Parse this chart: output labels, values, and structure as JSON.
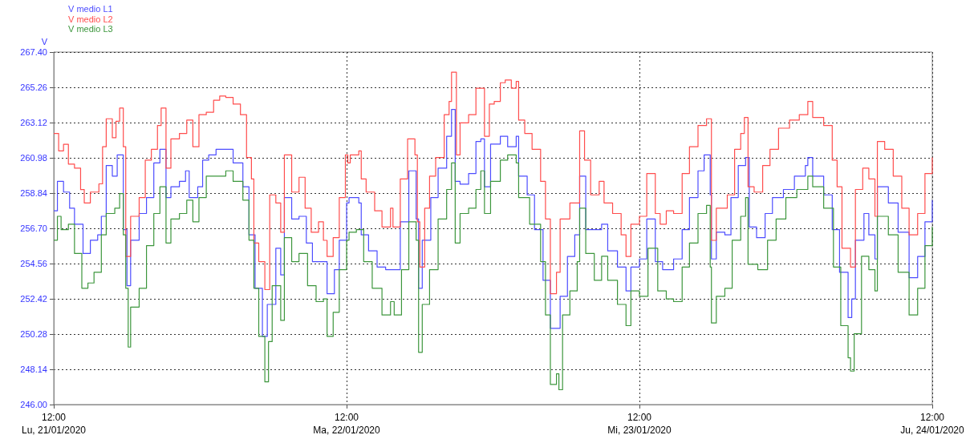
{
  "chart_data": {
    "type": "step",
    "ylabel": "V",
    "legend": "top left",
    "grid": true,
    "marker": "none",
    "line_style": "solid",
    "xlim": [
      "2020-01-21T12:00",
      "2020-01-24T12:00"
    ],
    "xticks": [
      {
        "value": "2020-01-21T12:00",
        "label": "12:00\nLu, 21/01/2020"
      },
      {
        "value": "2020-01-22T12:00",
        "label": "12:00\nMa, 22/01/2020"
      },
      {
        "value": "2020-01-23T12:00",
        "label": "12:00\nMi, 23/01/2020"
      },
      {
        "value": "2020-01-24T12:00",
        "label": "12:00\nJu, 24/01/2020"
      }
    ],
    "ylim": [
      246,
      267.4
    ],
    "yticks": [
      {
        "value": 246,
        "label": "246.00"
      },
      {
        "value": 248.14,
        "label": "248.14"
      },
      {
        "value": 250.28,
        "label": "250.28"
      },
      {
        "value": 252.42,
        "label": "252.42"
      },
      {
        "value": 254.56,
        "label": "254.56"
      },
      {
        "value": 256.7,
        "label": "256.70"
      },
      {
        "value": 258.84,
        "label": "258.84"
      },
      {
        "value": 260.98,
        "label": "260.98"
      },
      {
        "value": 263.12,
        "label": "263.12"
      },
      {
        "value": 265.26,
        "label": "265.26"
      },
      {
        "value": 267.4,
        "label": "267.40"
      }
    ],
    "series": [
      {
        "name": "V medio L1",
        "color": "#4d4dff",
        "x": [
          "2020-01-21T12:00",
          "2020-01-21T12:18",
          "2020-01-21T12:48",
          "2020-01-21T13:18",
          "2020-01-21T13:42",
          "2020-01-21T14:24",
          "2020-01-21T15:00",
          "2020-01-21T15:36",
          "2020-01-21T15:54",
          "2020-01-21T16:18",
          "2020-01-21T16:48",
          "2020-01-21T17:12",
          "2020-01-21T17:36",
          "2020-01-21T17:42",
          "2020-01-21T18:00",
          "2020-01-21T18:18",
          "2020-01-21T19:00",
          "2020-01-21T19:36",
          "2020-01-21T20:12",
          "2020-01-21T20:42",
          "2020-01-21T21:12",
          "2020-01-21T21:36",
          "2020-01-21T22:18",
          "2020-01-21T22:48",
          "2020-01-21T23:06",
          "2020-01-21T23:48",
          "2020-01-22T00:12",
          "2020-01-22T00:42",
          "2020-01-22T01:18",
          "2020-01-22T02:06",
          "2020-01-22T02:42",
          "2020-01-22T03:30",
          "2020-01-22T04:00",
          "2020-01-22T04:30",
          "2020-01-22T05:06",
          "2020-01-22T05:30",
          "2020-01-22T06:12",
          "2020-01-22T06:36",
          "2020-01-22T06:54",
          "2020-01-22T07:30",
          "2020-01-22T08:06",
          "2020-01-22T08:42",
          "2020-01-22T09:12",
          "2020-01-22T09:54",
          "2020-01-22T10:24",
          "2020-01-22T11:00",
          "2020-01-22T11:24",
          "2020-01-22T12:00",
          "2020-01-22T12:12",
          "2020-01-22T13:00",
          "2020-01-22T13:12",
          "2020-01-22T13:48",
          "2020-01-22T14:30",
          "2020-01-22T15:12",
          "2020-01-22T15:48",
          "2020-01-22T16:24",
          "2020-01-22T17:06",
          "2020-01-22T17:42",
          "2020-01-22T17:54",
          "2020-01-22T18:12",
          "2020-01-22T18:54",
          "2020-01-22T19:30",
          "2020-01-22T20:12",
          "2020-01-22T20:36",
          "2020-01-22T20:54",
          "2020-01-22T21:18",
          "2020-01-22T22:00",
          "2020-01-22T22:36",
          "2020-01-22T23:00",
          "2020-01-22T23:18",
          "2020-01-22T23:48",
          "2020-01-23T00:36",
          "2020-01-23T01:12",
          "2020-01-23T01:54",
          "2020-01-23T02:06",
          "2020-01-23T02:48",
          "2020-01-23T03:24",
          "2020-01-23T04:06",
          "2020-01-23T04:42",
          "2020-01-23T05:12",
          "2020-01-23T05:30",
          "2020-01-23T06:06",
          "2020-01-23T06:42",
          "2020-01-23T07:06",
          "2020-01-23T07:36",
          "2020-01-23T08:18",
          "2020-01-23T08:54",
          "2020-01-23T09:24",
          "2020-01-23T10:12",
          "2020-01-23T10:54",
          "2020-01-23T11:18",
          "2020-01-23T12:00",
          "2020-01-23T12:36",
          "2020-01-23T13:18",
          "2020-01-23T13:54",
          "2020-01-23T14:48",
          "2020-01-23T15:30",
          "2020-01-23T16:06",
          "2020-01-23T16:48",
          "2020-01-23T17:18",
          "2020-01-23T17:48",
          "2020-01-23T17:54",
          "2020-01-23T18:18",
          "2020-01-23T19:00",
          "2020-01-23T19:30",
          "2020-01-23T20:06",
          "2020-01-23T20:42",
          "2020-01-23T21:00",
          "2020-01-23T21:36",
          "2020-01-23T22:18",
          "2020-01-23T22:54",
          "2020-01-23T23:48",
          "2020-01-24T00:42",
          "2020-01-24T01:36",
          "2020-01-24T01:48",
          "2020-01-24T02:12",
          "2020-01-24T03:06",
          "2020-01-24T03:48",
          "2020-01-24T04:24",
          "2020-01-24T05:06",
          "2020-01-24T05:24",
          "2020-01-24T05:42",
          "2020-01-24T06:24",
          "2020-01-24T06:48",
          "2020-01-24T07:18",
          "2020-01-24T07:30",
          "2020-01-24T08:24",
          "2020-01-24T09:12",
          "2020-01-24T10:06",
          "2020-01-24T10:48",
          "2020-01-24T11:24",
          "2020-01-24T12:00"
        ],
        "values": [
          257.76,
          259.55,
          258.9,
          257.92,
          256.95,
          255.17,
          255.98,
          256.3,
          257.43,
          260.51,
          259.87,
          261.16,
          261.16,
          256.62,
          253.22,
          255.98,
          257.6,
          258.57,
          260.67,
          261.5,
          258.57,
          259.22,
          259.55,
          260.19,
          258.57,
          259.22,
          260.84,
          261.16,
          261.5,
          261.5,
          260.67,
          259.22,
          256.3,
          253.06,
          250.14,
          252.08,
          255.49,
          253.87,
          258.57,
          257.27,
          257.43,
          255.81,
          254.68,
          254.68,
          252.73,
          254.19,
          255.98,
          258.24,
          258.57,
          258.24,
          256.3,
          255.33,
          254.35,
          254.19,
          254.19,
          257.1,
          260.19,
          257.27,
          253.06,
          255.98,
          258.57,
          260.35,
          262.29,
          263.92,
          259.55,
          259.38,
          260.03,
          261.97,
          262.13,
          259.22,
          261.81,
          262.29,
          261.65,
          262.29,
          259.87,
          258.73,
          256.62,
          253.54,
          250.63,
          250.63,
          252.57,
          254.99,
          256.3,
          259.87,
          256.62,
          256.62,
          256.95,
          255.33,
          254.35,
          252.9,
          254.35,
          254.84,
          257.27,
          254.68,
          254.19,
          254.84,
          256.62,
          258.57,
          260.19,
          261.16,
          258.73,
          254.84,
          256.46,
          256.3,
          258.57,
          260.51,
          261.0,
          256.78,
          256.13,
          257.6,
          258.57,
          259.06,
          259.87,
          260.51,
          261.0,
          259.87,
          258.73,
          256.62,
          254.03,
          251.28,
          252.41,
          255.98,
          257.6,
          256.3,
          254.84,
          259.22,
          258.24,
          256.46,
          253.7,
          254.99,
          257.1,
          258.41
        ]
      },
      {
        "name": "V medio L2",
        "color": "#ff4d4d",
        "x": [
          "2020-01-21T12:00",
          "2020-01-21T12:24",
          "2020-01-21T12:48",
          "2020-01-21T13:12",
          "2020-01-21T13:42",
          "2020-01-21T14:12",
          "2020-01-21T14:30",
          "2020-01-21T15:00",
          "2020-01-21T15:42",
          "2020-01-21T16:00",
          "2020-01-21T16:18",
          "2020-01-21T16:48",
          "2020-01-21T17:06",
          "2020-01-21T17:24",
          "2020-01-21T17:42",
          "2020-01-21T17:54",
          "2020-01-21T18:18",
          "2020-01-21T19:00",
          "2020-01-21T19:30",
          "2020-01-21T20:00",
          "2020-01-21T20:30",
          "2020-01-21T20:48",
          "2020-01-21T21:12",
          "2020-01-21T21:36",
          "2020-01-21T22:18",
          "2020-01-21T22:54",
          "2020-01-21T23:24",
          "2020-01-21T23:54",
          "2020-01-22T00:30",
          "2020-01-22T01:06",
          "2020-01-22T01:36",
          "2020-01-22T02:06",
          "2020-01-22T02:42",
          "2020-01-22T03:18",
          "2020-01-22T03:48",
          "2020-01-22T04:12",
          "2020-01-22T04:24",
          "2020-01-22T04:48",
          "2020-01-22T05:18",
          "2020-01-22T05:42",
          "2020-01-22T06:12",
          "2020-01-22T06:36",
          "2020-01-22T06:54",
          "2020-01-22T07:30",
          "2020-01-22T08:06",
          "2020-01-22T08:36",
          "2020-01-22T09:06",
          "2020-01-22T09:42",
          "2020-01-22T10:06",
          "2020-01-22T10:24",
          "2020-01-22T10:54",
          "2020-01-22T11:24",
          "2020-01-22T11:54",
          "2020-01-22T12:06",
          "2020-01-22T12:18",
          "2020-01-22T13:00",
          "2020-01-22T13:12",
          "2020-01-22T13:36",
          "2020-01-22T14:18",
          "2020-01-22T14:54",
          "2020-01-22T15:36",
          "2020-01-22T15:48",
          "2020-01-22T16:24",
          "2020-01-22T17:00",
          "2020-01-22T17:36",
          "2020-01-22T17:48",
          "2020-01-22T18:00",
          "2020-01-22T18:24",
          "2020-01-22T18:48",
          "2020-01-22T19:18",
          "2020-01-22T20:00",
          "2020-01-22T20:24",
          "2020-01-22T20:36",
          "2020-01-22T21:00",
          "2020-01-22T21:18",
          "2020-01-22T22:00",
          "2020-01-22T22:36",
          "2020-01-22T23:00",
          "2020-01-22T23:18",
          "2020-01-22T23:42",
          "2020-01-23T00:06",
          "2020-01-23T00:36",
          "2020-01-23T01:00",
          "2020-01-23T01:30",
          "2020-01-23T01:54",
          "2020-01-23T02:06",
          "2020-01-23T02:36",
          "2020-01-23T03:12",
          "2020-01-23T03:54",
          "2020-01-23T04:18",
          "2020-01-23T04:42",
          "2020-01-23T05:12",
          "2020-01-23T05:30",
          "2020-01-23T06:18",
          "2020-01-23T07:06",
          "2020-01-23T07:30",
          "2020-01-23T08:00",
          "2020-01-23T08:42",
          "2020-01-23T09:06",
          "2020-01-23T09:48",
          "2020-01-23T10:30",
          "2020-01-23T10:54",
          "2020-01-23T11:18",
          "2020-01-23T12:00",
          "2020-01-23T12:36",
          "2020-01-23T13:18",
          "2020-01-23T13:42",
          "2020-01-23T14:12",
          "2020-01-23T14:48",
          "2020-01-23T15:30",
          "2020-01-23T16:06",
          "2020-01-23T16:48",
          "2020-01-23T17:30",
          "2020-01-23T17:54",
          "2020-01-23T18:18",
          "2020-01-23T19:12",
          "2020-01-23T19:48",
          "2020-01-23T20:18",
          "2020-01-23T20:36",
          "2020-01-23T20:54",
          "2020-01-23T21:24",
          "2020-01-23T22:06",
          "2020-01-23T22:42",
          "2020-01-23T23:24",
          "2020-01-24T00:18",
          "2020-01-24T01:06",
          "2020-01-24T01:48",
          "2020-01-24T02:12",
          "2020-01-24T03:06",
          "2020-01-24T03:48",
          "2020-01-24T04:12",
          "2020-01-24T04:36",
          "2020-01-24T05:18",
          "2020-01-24T05:42",
          "2020-01-24T06:18",
          "2020-01-24T06:48",
          "2020-01-24T07:18",
          "2020-01-24T07:30",
          "2020-01-24T08:06",
          "2020-01-24T08:48",
          "2020-01-24T09:30",
          "2020-01-24T10:06",
          "2020-01-24T10:48",
          "2020-01-24T11:24",
          "2020-01-24T12:00"
        ],
        "values": [
          262.46,
          261.4,
          261.8,
          260.6,
          260.35,
          259.05,
          258.24,
          258.9,
          259.4,
          261.65,
          263.35,
          262.2,
          263.2,
          264.0,
          261.65,
          254.99,
          257.43,
          258.57,
          260.84,
          261.5,
          262.94,
          264.0,
          260.35,
          262.13,
          262.46,
          263.27,
          261.65,
          263.6,
          263.75,
          264.48,
          264.73,
          264.65,
          264.24,
          263.6,
          261.0,
          259.7,
          255.81,
          254.68,
          252.98,
          258.73,
          258.24,
          256.46,
          261.16,
          258.9,
          259.8,
          257.92,
          256.46,
          257.1,
          255.97,
          254.99,
          256.13,
          258.57,
          261.16,
          260.67,
          261.16,
          261.4,
          259.7,
          258.9,
          257.76,
          256.78,
          257.92,
          256.78,
          259.7,
          262.13,
          261.16,
          257.1,
          254.35,
          257.92,
          259.87,
          261.0,
          263.6,
          264.4,
          266.18,
          261.16,
          263.1,
          263.6,
          265.21,
          265.21,
          262.29,
          264.24,
          264.4,
          265.54,
          265.7,
          265.21,
          265.62,
          263.27,
          262.46,
          261.5,
          259.55,
          257.27,
          252.73,
          254.03,
          257.27,
          258.24,
          262.62,
          260.84,
          258.73,
          259.55,
          258.24,
          257.6,
          256.3,
          254.99,
          256.95,
          257.43,
          260.03,
          257.6,
          256.95,
          257.76,
          257.6,
          260.03,
          261.65,
          262.94,
          263.35,
          255.97,
          257.92,
          258.73,
          261.5,
          262.46,
          263.43,
          259.22,
          258.9,
          260.51,
          261.5,
          262.78,
          263.27,
          263.6,
          264.4,
          263.43,
          262.94,
          260.84,
          259.22,
          255.49,
          254.35,
          259.06,
          260.35,
          259.7,
          257.43,
          261.97,
          261.5,
          259.87,
          257.92,
          256.3,
          257.6,
          260.03,
          261.0
        ]
      },
      {
        "name": "V medio L3",
        "color": "#3c963c",
        "x": [
          "2020-01-21T12:00",
          "2020-01-21T12:18",
          "2020-01-21T12:36",
          "2020-01-21T13:12",
          "2020-01-21T13:42",
          "2020-01-21T14:18",
          "2020-01-21T14:48",
          "2020-01-21T15:18",
          "2020-01-21T15:54",
          "2020-01-21T16:18",
          "2020-01-21T17:00",
          "2020-01-21T17:24",
          "2020-01-21T17:42",
          "2020-01-21T17:54",
          "2020-01-21T18:06",
          "2020-01-21T18:18",
          "2020-01-21T19:00",
          "2020-01-21T19:36",
          "2020-01-21T20:12",
          "2020-01-21T20:42",
          "2020-01-21T21:12",
          "2020-01-21T21:36",
          "2020-01-21T22:18",
          "2020-01-21T22:54",
          "2020-01-21T23:24",
          "2020-01-21T23:54",
          "2020-01-22T00:30",
          "2020-01-22T01:18",
          "2020-01-22T02:06",
          "2020-01-22T02:42",
          "2020-01-22T03:30",
          "2020-01-22T04:00",
          "2020-01-22T04:24",
          "2020-01-22T04:48",
          "2020-01-22T05:18",
          "2020-01-22T05:36",
          "2020-01-22T05:54",
          "2020-01-22T06:36",
          "2020-01-22T06:54",
          "2020-01-22T07:30",
          "2020-01-22T08:06",
          "2020-01-22T08:48",
          "2020-01-22T09:30",
          "2020-01-22T10:06",
          "2020-01-22T10:24",
          "2020-01-22T10:54",
          "2020-01-22T11:24",
          "2020-01-22T12:00",
          "2020-01-22T12:12",
          "2020-01-22T12:48",
          "2020-01-22T13:24",
          "2020-01-22T14:06",
          "2020-01-22T14:54",
          "2020-01-22T15:36",
          "2020-01-22T15:54",
          "2020-01-22T16:30",
          "2020-01-22T17:06",
          "2020-01-22T17:42",
          "2020-01-22T17:54",
          "2020-01-22T18:12",
          "2020-01-22T18:48",
          "2020-01-22T19:30",
          "2020-01-22T20:12",
          "2020-01-22T20:36",
          "2020-01-22T20:54",
          "2020-01-22T21:18",
          "2020-01-22T22:00",
          "2020-01-22T22:36",
          "2020-01-22T23:00",
          "2020-01-22T23:18",
          "2020-01-22T23:48",
          "2020-01-23T00:36",
          "2020-01-23T01:12",
          "2020-01-23T01:54",
          "2020-01-23T02:06",
          "2020-01-23T03:00",
          "2020-01-23T03:54",
          "2020-01-23T04:18",
          "2020-01-23T04:42",
          "2020-01-23T05:12",
          "2020-01-23T05:24",
          "2020-01-23T05:42",
          "2020-01-23T06:18",
          "2020-01-23T06:54",
          "2020-01-23T07:06",
          "2020-01-23T07:36",
          "2020-01-23T08:18",
          "2020-01-23T08:54",
          "2020-01-23T09:24",
          "2020-01-23T10:12",
          "2020-01-23T10:54",
          "2020-01-23T11:18",
          "2020-01-23T12:00",
          "2020-01-23T12:42",
          "2020-01-23T13:30",
          "2020-01-23T14:12",
          "2020-01-23T14:48",
          "2020-01-23T15:30",
          "2020-01-23T16:06",
          "2020-01-23T16:48",
          "2020-01-23T17:30",
          "2020-01-23T17:48",
          "2020-01-23T17:54",
          "2020-01-23T18:18",
          "2020-01-23T19:00",
          "2020-01-23T19:36",
          "2020-01-23T20:18",
          "2020-01-23T20:42",
          "2020-01-23T20:54",
          "2020-01-23T21:42",
          "2020-01-23T22:30",
          "2020-01-23T23:12",
          "2020-01-24T00:00",
          "2020-01-24T00:54",
          "2020-01-24T01:48",
          "2020-01-24T02:12",
          "2020-01-24T03:06",
          "2020-01-24T03:54",
          "2020-01-24T04:30",
          "2020-01-24T05:06",
          "2020-01-24T05:18",
          "2020-01-24T05:36",
          "2020-01-24T06:12",
          "2020-01-24T06:48",
          "2020-01-24T07:18",
          "2020-01-24T07:30",
          "2020-01-24T08:24",
          "2020-01-24T09:12",
          "2020-01-24T10:06",
          "2020-01-24T10:48",
          "2020-01-24T11:24",
          "2020-01-24T12:00"
        ],
        "values": [
          255.98,
          257.43,
          256.62,
          256.95,
          255.17,
          253.06,
          253.38,
          254.03,
          256.3,
          257.6,
          257.92,
          258.81,
          256.3,
          253.06,
          249.49,
          251.92,
          253.06,
          255.65,
          257.6,
          259.22,
          255.81,
          257.27,
          257.6,
          258.41,
          257.1,
          258.57,
          259.87,
          259.87,
          260.19,
          259.55,
          258.41,
          255.98,
          253.06,
          250.14,
          247.38,
          249.82,
          253.22,
          251.11,
          256.13,
          254.68,
          255.17,
          253.22,
          252.25,
          252.41,
          250.14,
          251.6,
          254.19,
          255.98,
          256.46,
          256.62,
          254.68,
          253.06,
          251.44,
          252.25,
          251.44,
          254.19,
          257.1,
          255.98,
          249.17,
          252.08,
          254.19,
          257.27,
          259.06,
          260.67,
          255.81,
          257.6,
          257.92,
          259.06,
          260.19,
          257.6,
          259.55,
          260.84,
          261.16,
          260.67,
          258.57,
          256.95,
          254.68,
          251.44,
          247.22,
          247.87,
          246.9,
          251.44,
          252.9,
          254.68,
          257.92,
          255.17,
          253.54,
          255.0,
          253.54,
          252.08,
          250.79,
          252.9,
          252.57,
          255.49,
          252.9,
          252.41,
          252.25,
          254.35,
          255.81,
          257.6,
          258.09,
          254.35,
          250.95,
          252.57,
          253.06,
          255.98,
          257.43,
          258.57,
          254.52,
          254.19,
          255.98,
          257.27,
          258.57,
          259.06,
          259.87,
          259.22,
          257.92,
          254.35,
          250.79,
          248.84,
          248.03,
          250.3,
          255.0,
          254.19,
          252.9,
          257.43,
          256.3,
          254.03,
          251.44,
          253.06,
          255.65,
          256.78
        ]
      }
    ]
  }
}
